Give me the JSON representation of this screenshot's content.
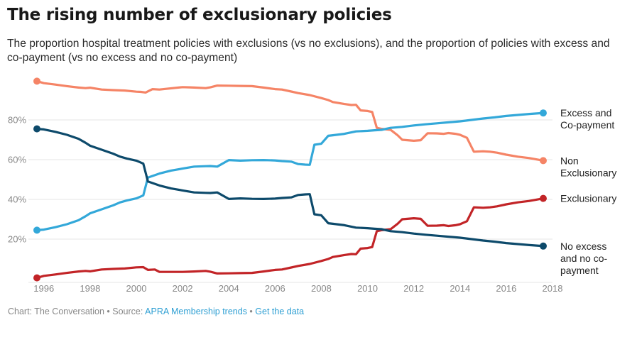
{
  "title": "The rising number of exclusionary policies",
  "subtitle": "The proportion hospital treatment policies with exclusions (vs no exclusions), and the proportion of policies with excess and co-payment (vs no excess and no co-payment)",
  "footer": {
    "prefix": "Chart: The Conversation • Source: ",
    "source_link": "APRA Membership trends",
    "separator": " • ",
    "data_link": "Get the data"
  },
  "chart_data": {
    "type": "line",
    "xlim": [
      1995.7,
      2018.0
    ],
    "ylim": [
      0,
      100
    ],
    "x_ticks": [
      "1996",
      "1998",
      "2000",
      "2002",
      "2004",
      "2006",
      "2008",
      "2010",
      "2012",
      "2014",
      "2016",
      "2018"
    ],
    "x_tick_values": [
      1996,
      1998,
      2000,
      2002,
      2004,
      2006,
      2008,
      2010,
      2012,
      2014,
      2016,
      2018
    ],
    "y_ticks": [
      "20%",
      "40%",
      "60%",
      "80%"
    ],
    "y_tick_values": [
      20,
      40,
      60,
      80
    ],
    "series": [
      {
        "name": "Non Exclusionary",
        "label_lines": [
          "Non",
          "Exclusionary"
        ],
        "color": "#f58466",
        "x": [
          1995.7,
          1996.0,
          1996.5,
          1997.0,
          1997.5,
          1997.8,
          1998.0,
          1998.5,
          1999.0,
          1999.5,
          2000.0,
          2000.2,
          2000.4,
          2000.7,
          2001.0,
          2002.0,
          2002.3,
          2002.5,
          2003.0,
          2003.2,
          2003.5,
          2004.0,
          2004.5,
          2005.0,
          2005.5,
          2006.0,
          2006.3,
          2006.7,
          2007.0,
          2007.5,
          2008.0,
          2008.3,
          2008.5,
          2009.0,
          2009.3,
          2009.5,
          2009.7,
          2010.0,
          2010.2,
          2010.4,
          2010.6,
          2011.0,
          2011.3,
          2011.5,
          2012.0,
          2012.3,
          2012.6,
          2013.0,
          2013.3,
          2013.5,
          2013.8,
          2014.0,
          2014.3,
          2014.6,
          2015.0,
          2015.3,
          2015.6,
          2016.0,
          2016.5,
          2017.0,
          2017.6
        ],
        "values": [
          99.5,
          98.5,
          97.8,
          97.0,
          96.3,
          96.0,
          96.2,
          95.3,
          95.0,
          94.8,
          94.2,
          94.1,
          93.8,
          95.5,
          95.3,
          96.5,
          96.4,
          96.3,
          96.0,
          96.4,
          97.3,
          97.2,
          97.1,
          97.0,
          96.3,
          95.5,
          95.3,
          94.3,
          93.5,
          92.5,
          91.0,
          90.0,
          89.0,
          88.0,
          87.5,
          87.6,
          84.8,
          84.5,
          84.0,
          76.0,
          75.5,
          75.0,
          72.3,
          70.0,
          69.5,
          69.8,
          73.3,
          73.2,
          73.0,
          73.4,
          73.0,
          72.5,
          71.0,
          64.0,
          64.2,
          64.0,
          63.5,
          62.5,
          61.5,
          60.8,
          59.5
        ]
      },
      {
        "name": "Excess and Co-payment",
        "label_lines": [
          "Excess and",
          "Co-payment"
        ],
        "color": "#33a8d9",
        "x": [
          1995.7,
          1996.0,
          1996.5,
          1997.0,
          1997.5,
          1997.8,
          1998.0,
          1998.5,
          1999.0,
          1999.3,
          1999.6,
          2000.0,
          2000.2,
          2000.3,
          2000.5,
          2001.0,
          2001.5,
          2002.0,
          2002.5,
          2003.0,
          2003.2,
          2003.5,
          2004.0,
          2004.5,
          2005.0,
          2005.5,
          2006.0,
          2006.3,
          2006.7,
          2007.0,
          2007.3,
          2007.5,
          2007.7,
          2008.0,
          2008.3,
          2008.5,
          2009.0,
          2009.5,
          2010.0,
          2010.3,
          2010.6,
          2011.0,
          2011.5,
          2012.0,
          2012.5,
          2013.0,
          2013.5,
          2014.0,
          2014.5,
          2015.0,
          2015.5,
          2016.0,
          2016.5,
          2017.0,
          2017.6
        ],
        "values": [
          24.5,
          24.8,
          26.0,
          27.5,
          29.5,
          31.5,
          33.0,
          35.0,
          37.0,
          38.5,
          39.5,
          40.5,
          41.5,
          42.0,
          51.0,
          53.0,
          54.5,
          55.5,
          56.5,
          56.7,
          56.8,
          56.5,
          59.8,
          59.5,
          59.7,
          59.8,
          59.6,
          59.3,
          59.0,
          57.8,
          57.5,
          57.4,
          67.5,
          68.0,
          72.0,
          72.3,
          73.0,
          74.2,
          74.5,
          74.8,
          75.0,
          76.0,
          76.5,
          77.2,
          77.8,
          78.3,
          78.8,
          79.3,
          80.0,
          80.7,
          81.3,
          82.0,
          82.5,
          83.0,
          83.5
        ]
      },
      {
        "name": "Exclusionary",
        "label_lines": [
          "Exclusionary"
        ],
        "color": "#c22427",
        "x": [
          1995.7,
          1996.0,
          1996.5,
          1997.0,
          1997.5,
          1997.8,
          1998.0,
          1998.5,
          1999.0,
          1999.5,
          2000.0,
          2000.3,
          2000.5,
          2000.8,
          2001.0,
          2002.0,
          2002.3,
          2002.5,
          2003.0,
          2003.2,
          2003.5,
          2004.0,
          2004.5,
          2005.0,
          2005.5,
          2006.0,
          2006.3,
          2006.7,
          2007.0,
          2007.5,
          2008.0,
          2008.3,
          2008.5,
          2009.0,
          2009.3,
          2009.5,
          2009.7,
          2010.0,
          2010.2,
          2010.4,
          2010.6,
          2011.0,
          2011.3,
          2011.5,
          2012.0,
          2012.3,
          2012.6,
          2013.0,
          2013.3,
          2013.5,
          2013.8,
          2014.0,
          2014.3,
          2014.6,
          2015.0,
          2015.3,
          2015.6,
          2016.0,
          2016.5,
          2017.0,
          2017.6
        ],
        "values": [
          0.5,
          1.5,
          2.2,
          3.0,
          3.7,
          4.0,
          3.8,
          4.7,
          5.0,
          5.2,
          5.8,
          5.9,
          4.5,
          4.7,
          3.5,
          3.5,
          3.6,
          3.7,
          4.0,
          3.6,
          2.7,
          2.8,
          2.9,
          3.0,
          3.7,
          4.5,
          4.7,
          5.7,
          6.5,
          7.5,
          9.0,
          10.0,
          11.0,
          12.0,
          12.5,
          12.4,
          15.2,
          15.5,
          16.0,
          24.0,
          24.5,
          25.0,
          27.7,
          30.0,
          30.5,
          30.2,
          26.7,
          26.8,
          27.0,
          26.6,
          27.0,
          27.5,
          29.0,
          36.0,
          35.8,
          36.0,
          36.5,
          37.5,
          38.5,
          39.2,
          40.5
        ]
      },
      {
        "name": "No excess and no co-payment",
        "label_lines": [
          "No excess",
          "and no co-",
          "payment"
        ],
        "color": "#0d4a6b",
        "x": [
          1995.7,
          1996.0,
          1996.5,
          1997.0,
          1997.5,
          1997.8,
          1998.0,
          1998.5,
          1999.0,
          1999.3,
          1999.6,
          2000.0,
          2000.2,
          2000.3,
          2000.5,
          2001.0,
          2001.5,
          2002.0,
          2002.5,
          2003.0,
          2003.2,
          2003.5,
          2004.0,
          2004.5,
          2005.0,
          2005.5,
          2006.0,
          2006.3,
          2006.7,
          2007.0,
          2007.3,
          2007.5,
          2007.7,
          2008.0,
          2008.3,
          2008.5,
          2009.0,
          2009.5,
          2010.0,
          2010.3,
          2010.6,
          2011.0,
          2011.5,
          2012.0,
          2012.5,
          2013.0,
          2013.5,
          2014.0,
          2014.5,
          2015.0,
          2015.5,
          2016.0,
          2016.5,
          2017.0,
          2017.6
        ],
        "values": [
          75.5,
          75.2,
          74.0,
          72.5,
          70.5,
          68.5,
          67.0,
          65.0,
          63.0,
          61.5,
          60.5,
          59.5,
          58.5,
          58.0,
          49.0,
          47.0,
          45.5,
          44.5,
          43.5,
          43.3,
          43.2,
          43.5,
          40.2,
          40.5,
          40.3,
          40.2,
          40.4,
          40.7,
          41.0,
          42.2,
          42.5,
          42.6,
          32.5,
          32.0,
          28.0,
          27.7,
          27.0,
          25.8,
          25.5,
          25.2,
          25.0,
          24.0,
          23.5,
          22.8,
          22.2,
          21.7,
          21.2,
          20.7,
          20.0,
          19.3,
          18.7,
          18.0,
          17.5,
          17.0,
          16.5
        ]
      }
    ]
  }
}
